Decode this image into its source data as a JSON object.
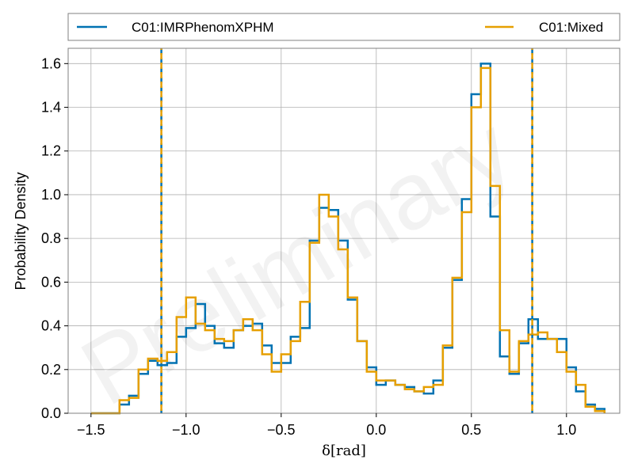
{
  "chart_data": {
    "type": "step-histogram",
    "xlabel": "δ[rad]",
    "ylabel": "Probability Density",
    "xlim": [
      -1.62,
      1.28
    ],
    "ylim": [
      0.0,
      1.67
    ],
    "xticks": [
      -1.5,
      -1.0,
      -0.5,
      0.0,
      0.5,
      1.0
    ],
    "xtick_labels": [
      "−1.5",
      "−1.0",
      "−0.5",
      "0.0",
      "0.5",
      "1.0"
    ],
    "yticks": [
      0.0,
      0.2,
      0.4,
      0.6,
      0.8,
      1.0,
      1.2,
      1.4,
      1.6
    ],
    "ytick_labels": [
      "0.0",
      "0.2",
      "0.4",
      "0.6",
      "0.8",
      "1.0",
      "1.2",
      "1.4",
      "1.6"
    ],
    "grid": true,
    "legend_position": "top, outside plot",
    "watermark": "Preliminary",
    "series": [
      {
        "name": "C01:IMRPhenomXPHM",
        "color": "#0072b2",
        "bin_width": 0.05,
        "bin_start": -1.5,
        "values": [
          0.0,
          0.0,
          0.0,
          0.04,
          0.08,
          0.18,
          0.24,
          0.22,
          0.23,
          0.35,
          0.39,
          0.5,
          0.4,
          0.32,
          0.3,
          0.38,
          0.4,
          0.41,
          0.31,
          0.23,
          0.23,
          0.35,
          0.39,
          0.79,
          0.94,
          0.93,
          0.79,
          0.52,
          0.33,
          0.21,
          0.13,
          0.15,
          0.13,
          0.12,
          0.1,
          0.09,
          0.15,
          0.3,
          0.61,
          0.98,
          1.46,
          1.6,
          0.9,
          0.26,
          0.18,
          0.32,
          0.43,
          0.34,
          0.34,
          0.34,
          0.21,
          0.1,
          0.04,
          0.02
        ],
        "median_lines": [
          -1.13,
          0.82
        ]
      },
      {
        "name": "C01:Mixed",
        "color": "#e69f00",
        "bin_width": 0.05,
        "bin_start": -1.5,
        "values": [
          0.0,
          0.0,
          0.0,
          0.06,
          0.07,
          0.2,
          0.25,
          0.24,
          0.28,
          0.44,
          0.53,
          0.41,
          0.38,
          0.34,
          0.33,
          0.38,
          0.43,
          0.38,
          0.27,
          0.19,
          0.27,
          0.33,
          0.51,
          0.78,
          1.0,
          0.9,
          0.75,
          0.53,
          0.33,
          0.19,
          0.15,
          0.15,
          0.13,
          0.11,
          0.1,
          0.12,
          0.13,
          0.31,
          0.62,
          0.92,
          1.4,
          1.58,
          1.04,
          0.38,
          0.19,
          0.33,
          0.36,
          0.37,
          0.34,
          0.28,
          0.19,
          0.13,
          0.03,
          0.01
        ],
        "median_lines": [
          -1.13,
          0.82
        ]
      }
    ]
  }
}
